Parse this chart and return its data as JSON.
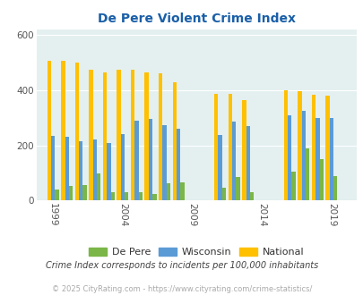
{
  "title": "De Pere Violent Crime Index",
  "title_color": "#1a5fa8",
  "years_all": [
    1999,
    2000,
    2001,
    2002,
    2003,
    2004,
    2005,
    2006,
    2007,
    2008,
    2011,
    2012,
    2013,
    2016,
    2017,
    2018,
    2019
  ],
  "de_pere": [
    40,
    52,
    55,
    100,
    30,
    30,
    30,
    25,
    62,
    65,
    47,
    85,
    30,
    105,
    190,
    150,
    88
  ],
  "wisconsin": [
    235,
    230,
    215,
    220,
    210,
    240,
    290,
    295,
    275,
    260,
    238,
    285,
    270,
    310,
    325,
    300,
    300
  ],
  "national": [
    508,
    508,
    500,
    475,
    465,
    475,
    475,
    465,
    460,
    430,
    387,
    387,
    365,
    400,
    395,
    383,
    379
  ],
  "color_depere": "#7ab648",
  "color_wisconsin": "#5b9bd5",
  "color_national": "#ffc000",
  "bg_color": "#e4f0f0",
  "ylim": [
    0,
    620
  ],
  "yticks": [
    0,
    200,
    400,
    600
  ],
  "xlabel_years": [
    1999,
    2004,
    2009,
    2014,
    2019
  ],
  "subtitle": "Crime Index corresponds to incidents per 100,000 inhabitants",
  "subtitle_color": "#444444",
  "footer": "© 2025 CityRating.com - https://www.cityrating.com/crime-statistics/",
  "footer_color": "#aaaaaa",
  "legend_labels": [
    "De Pere",
    "Wisconsin",
    "National"
  ]
}
